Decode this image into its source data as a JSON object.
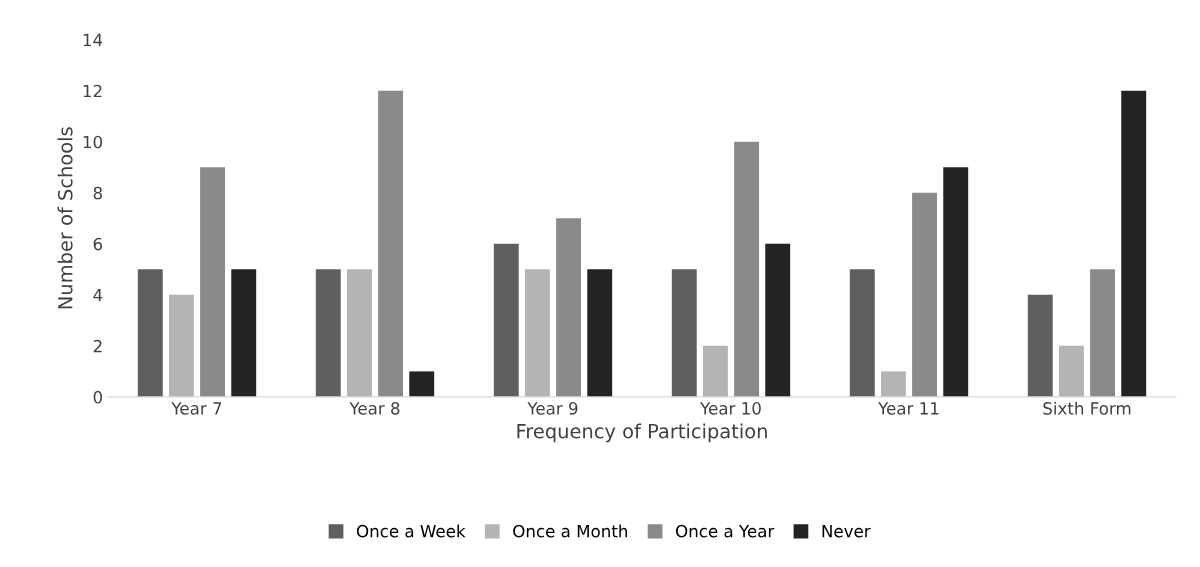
{
  "chart_data": {
    "type": "bar",
    "xlabel": "Frequency of Participation",
    "ylabel": "Number of Schools",
    "categories": [
      "Year 7",
      "Year 8",
      "Year 9",
      "Year 10",
      "Year 11",
      "Sixth Form"
    ],
    "series": [
      {
        "name": "Once a Week",
        "color": "#5f5f5f",
        "values": [
          5,
          5,
          6,
          5,
          5,
          4
        ]
      },
      {
        "name": "Once a Month",
        "color": "#b4b4b4",
        "values": [
          4,
          5,
          5,
          2,
          1,
          2
        ]
      },
      {
        "name": "Once a Year",
        "color": "#8a8a8a",
        "values": [
          9,
          12,
          7,
          10,
          8,
          5
        ]
      },
      {
        "name": "Never",
        "color": "#232323",
        "values": [
          5,
          1,
          5,
          6,
          9,
          12
        ]
      }
    ],
    "ylim": [
      0,
      14
    ],
    "yticks": [
      0,
      2,
      4,
      6,
      8,
      10,
      12,
      14
    ],
    "grid": false,
    "legend": "bottom"
  }
}
